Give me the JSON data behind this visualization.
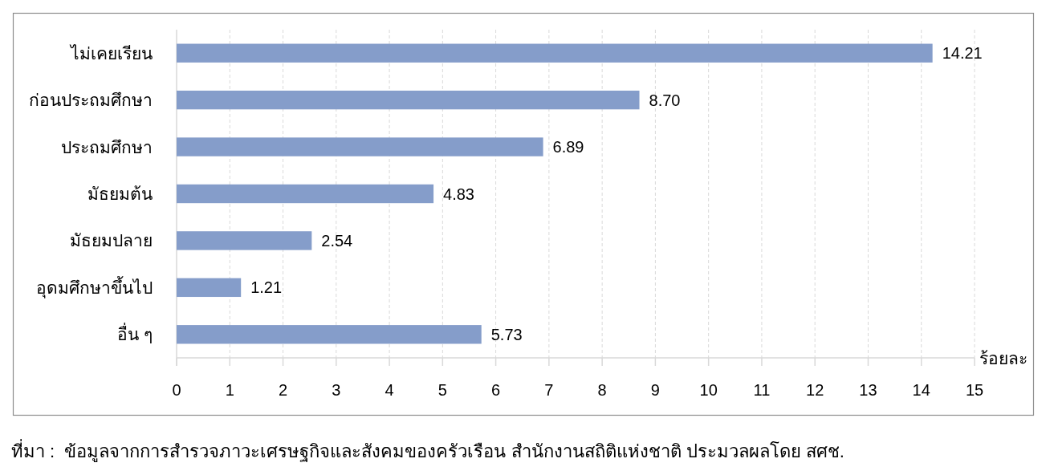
{
  "chart_data": {
    "type": "bar",
    "orientation": "horizontal",
    "categories": [
      "ไม่เคยเรียน",
      "ก่อนประถมศึกษา",
      "ประถมศึกษา",
      "มัธยมต้น",
      "มัธยมปลาย",
      "อุดมศึกษาขึ้นไป",
      "อื่น ๆ"
    ],
    "values": [
      14.21,
      8.7,
      6.89,
      4.83,
      2.54,
      1.21,
      5.73
    ],
    "value_labels": [
      "14.21",
      "8.70",
      "6.89",
      "4.83",
      "2.54",
      "1.21",
      "5.73"
    ],
    "color": "#859dca",
    "xlim": [
      0,
      15
    ],
    "xticks": [
      0,
      1,
      2,
      3,
      4,
      5,
      6,
      7,
      8,
      9,
      10,
      11,
      12,
      13,
      14,
      15
    ],
    "xlabel": "ร้อยละ",
    "grid": "x",
    "annotations": [
      "ที่มา :  ข้อมูลจากการสำรวจภาวะเศรษฐกิจและสังคมของครัวเรือน สำนักงานสถิติแห่งชาติ ประมวลผลโดย สศช."
    ]
  }
}
